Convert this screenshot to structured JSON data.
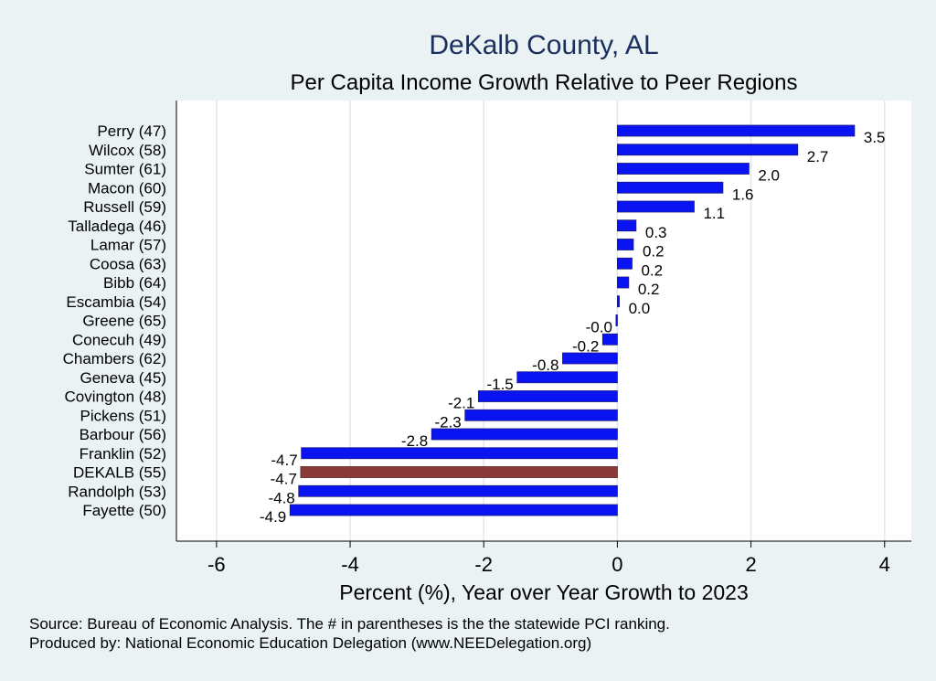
{
  "chart_data": {
    "type": "bar",
    "orientation": "horizontal",
    "title": "DeKalb County, AL",
    "subtitle": "Per Capita Income Growth Relative to Peer Regions",
    "xlabel": "Percent (%), Year over Year Growth to 2023",
    "ylabel": "",
    "xlim": [
      -6.6,
      4.4
    ],
    "xticks": [
      -6,
      -4,
      -2,
      0,
      2,
      4
    ],
    "xtick_labels": [
      "-6",
      "-4",
      "-2",
      "0",
      "2",
      "4"
    ],
    "grid": true,
    "categories": [
      "Perry (47)",
      "Wilcox (58)",
      "Sumter (61)",
      "Macon (60)",
      "Russell (59)",
      "Talladega (46)",
      "Lamar (57)",
      "Coosa (63)",
      "Bibb (64)",
      "Escambia (54)",
      "Greene (65)",
      "Conecuh (49)",
      "Chambers (62)",
      "Geneva (45)",
      "Covington (48)",
      "Pickens (51)",
      "Barbour (56)",
      "Franklin (52)",
      "DEKALB (55)",
      "Randolph (53)",
      "Fayette (50)"
    ],
    "values": [
      3.55,
      2.7,
      1.97,
      1.58,
      1.15,
      0.28,
      0.24,
      0.22,
      0.17,
      0.03,
      -0.02,
      -0.22,
      -0.82,
      -1.5,
      -2.08,
      -2.28,
      -2.78,
      -4.73,
      -4.74,
      -4.77,
      -4.9
    ],
    "value_labels": [
      "3.5",
      "2.7",
      "2.0",
      "1.6",
      "1.1",
      "0.3",
      "0.2",
      "0.2",
      "0.2",
      "0.0",
      "-0.0",
      "-0.2",
      "-0.8",
      "-1.5",
      "-2.1",
      "-2.3",
      "-2.8",
      "-4.7",
      "-4.7",
      "-4.8",
      "-4.9"
    ],
    "highlight": "DEKALB (55)",
    "colors": {
      "bar": "#0a14f2",
      "highlight": "#8b3a3a",
      "grid": "#dfe9ec",
      "plot_bg": "#ffffff",
      "page_bg": "#eaf2f3"
    }
  },
  "footer": {
    "source": "Source: Bureau of Economic Analysis. The # in parentheses is the the statewide PCI ranking.",
    "produced_by": "Produced by: National Economic Education Delegation (www.NEEDelegation.org)"
  }
}
